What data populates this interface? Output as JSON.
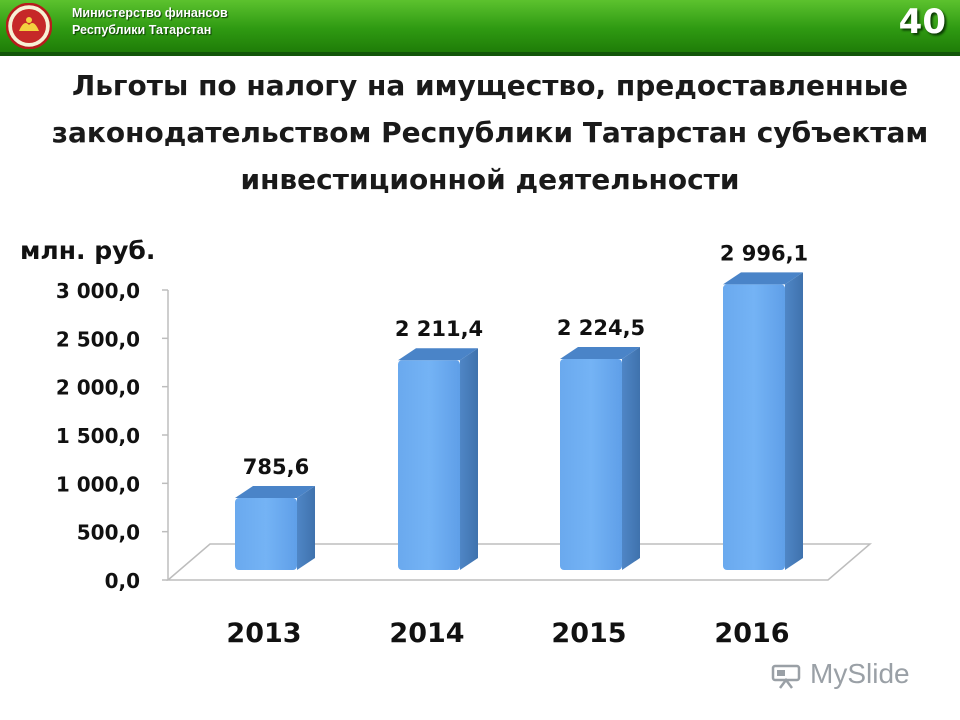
{
  "header": {
    "org_line1": "Министерство финансов",
    "org_line2": "Республики Татарстан",
    "page_number": "40",
    "colors": {
      "bar_top": "#5cc22e",
      "bar_bottom": "#1f7d08"
    }
  },
  "title_lines": [
    "Льготы по налогу на имущество, предоставленные",
    "законодательством Республики Татарстан субъектам",
    "инвестиционной деятельности"
  ],
  "chart_data": {
    "type": "bar",
    "categories": [
      "2013",
      "2014",
      "2015",
      "2016"
    ],
    "values": [
      785.6,
      2211.4,
      2224.5,
      2996.1
    ],
    "data_labels": [
      "785,6",
      "2 211,4",
      "2 224,5",
      "2 996,1"
    ],
    "ylabel": "млн. руб.",
    "ylim": [
      0,
      3000
    ],
    "yticks": [
      0,
      500,
      1000,
      1500,
      2000,
      2500,
      3000
    ],
    "ytick_labels": [
      "0,0",
      "500,0",
      "1 000,0",
      "1 500,0",
      "2 000,0",
      "2 500,0",
      "3 000,0"
    ],
    "bar_color": "#74b3f5",
    "bar_side_color": "#4f86c6",
    "style": "3d-column",
    "grid": false
  },
  "watermark": {
    "text": "MySlide",
    "icon": "projector-icon"
  }
}
